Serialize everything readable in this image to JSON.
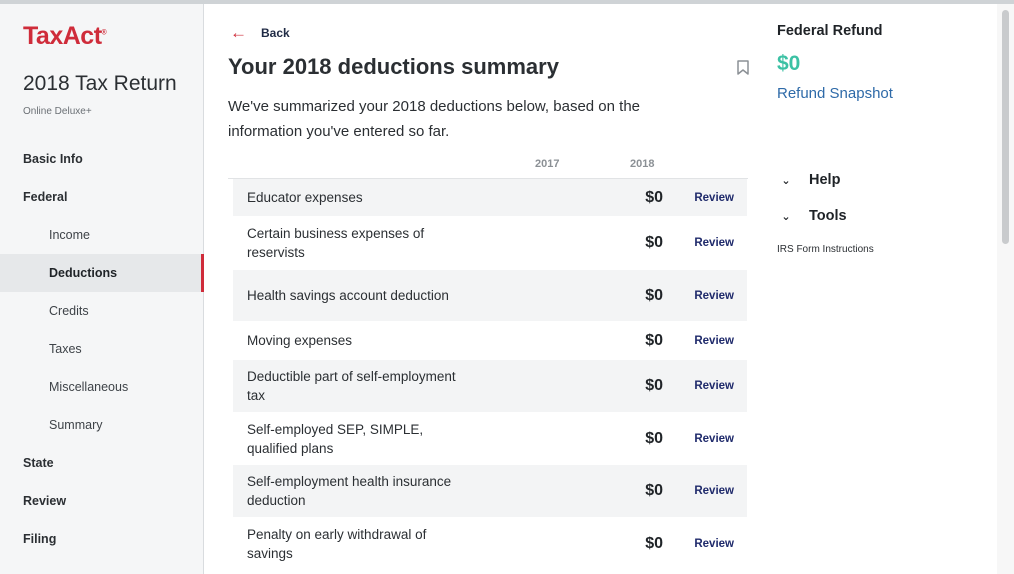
{
  "sidebar": {
    "logo": {
      "part1": "Tax",
      "part2": "Act",
      "mark": "®"
    },
    "return_title": "2018 Tax Return",
    "product": "Online Deluxe+",
    "nav": [
      {
        "label": "Basic Info",
        "level": "top"
      },
      {
        "label": "Federal",
        "level": "top"
      },
      {
        "label": "Income",
        "level": "sub"
      },
      {
        "label": "Deductions",
        "level": "sub",
        "active": true
      },
      {
        "label": "Credits",
        "level": "sub"
      },
      {
        "label": "Taxes",
        "level": "sub"
      },
      {
        "label": "Miscellaneous",
        "level": "sub"
      },
      {
        "label": "Summary",
        "level": "sub"
      },
      {
        "label": "State",
        "level": "top"
      },
      {
        "label": "Review",
        "level": "top"
      },
      {
        "label": "Filing",
        "level": "top"
      }
    ]
  },
  "main": {
    "back_label": "Back",
    "title": "Your 2018 deductions summary",
    "intro": "We've summarized your 2018 deductions below, based on the information you've entered so far.",
    "columns": {
      "year1": "2017",
      "year2": "2018"
    },
    "review_label": "Review",
    "rows": [
      {
        "label": "Educator expenses",
        "value": "$0"
      },
      {
        "label": "Certain business expenses of reservists",
        "value": "$0"
      },
      {
        "label": "Health savings account deduction",
        "value": "$0"
      },
      {
        "label": "Moving expenses",
        "value": "$0"
      },
      {
        "label": "Deductible part of self-employment tax",
        "value": "$0"
      },
      {
        "label": "Self-employed SEP, SIMPLE, qualified plans",
        "value": "$0"
      },
      {
        "label": "Self-employment health insurance deduction",
        "value": "$0"
      },
      {
        "label": "Penalty on early withdrawal of savings",
        "value": "$0"
      }
    ]
  },
  "right_panel": {
    "refund_label": "Federal Refund",
    "refund_amount": "$0",
    "refund_link": "Refund Snapshot",
    "help_label": "Help",
    "tools_label": "Tools",
    "tools_link": "IRS Form Instructions"
  },
  "colors": {
    "brand_red": "#cf2c3a",
    "refund_green": "#3cc1a4",
    "link_blue": "#2e6aa8",
    "review_navy": "#1f2a6b"
  },
  "icons": {
    "back": "arrow-left-icon",
    "bookmark": "bookmark-icon",
    "expand": "chevron-down-icon"
  }
}
